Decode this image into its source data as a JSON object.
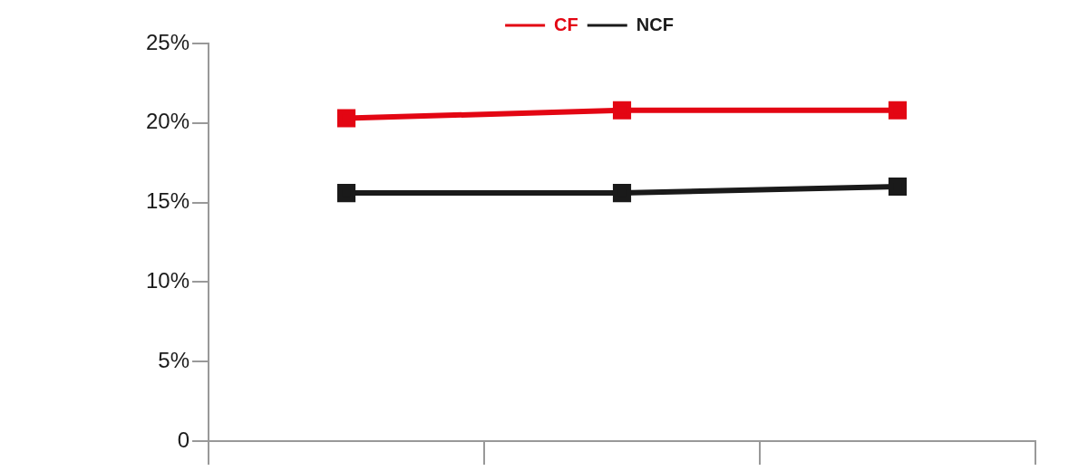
{
  "chart_data": {
    "type": "line",
    "categories": [
      null,
      null,
      null
    ],
    "series": [
      {
        "name": "CF",
        "color": "#e30613",
        "values": [
          20.3,
          20.8,
          20.8
        ]
      },
      {
        "name": "NCF",
        "color": "#1a1a1a",
        "values": [
          15.6,
          15.6,
          16.0
        ]
      }
    ],
    "ylim": [
      0,
      25
    ],
    "yticks": [
      0,
      {
        "value": 5,
        "label": "5%"
      },
      {
        "value": 10,
        "label": "10%"
      },
      {
        "value": 15,
        "label": "15%"
      },
      {
        "value": 20,
        "label": "20%"
      },
      {
        "value": 25,
        "label": "25%"
      }
    ],
    "grid": false,
    "legend": "top",
    "marker": "square",
    "line_style": "solid",
    "tick_labels": "y"
  }
}
